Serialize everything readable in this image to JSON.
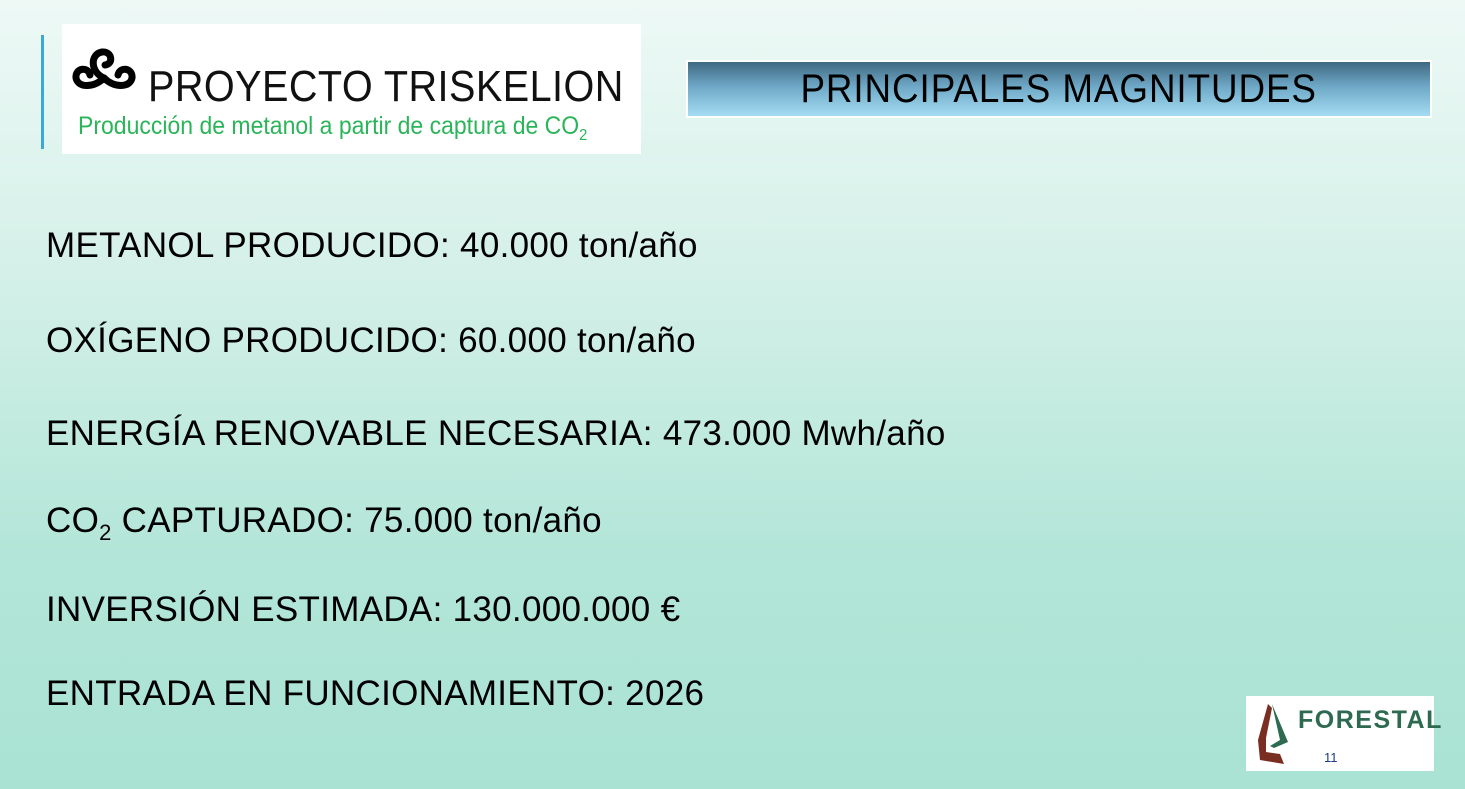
{
  "header": {
    "logo_title": "PROYECTO TRISKELION",
    "logo_subtitle": "Producción de metanol a partir de captura de CO",
    "logo_subtitle_sub": "2",
    "slide_title": "PRINCIPALES MAGNITUDES"
  },
  "items": [
    {
      "text": "METANOL PRODUCIDO: 40.000 ton/año"
    },
    {
      "text": "OXÍGENO PRODUCIDO: 60.000 ton/año"
    },
    {
      "text": "ENERGÍA RENOVABLE NECESARIA: 473.000 Mwh/año"
    },
    {
      "pre": "CO",
      "sub": "2",
      "text": " CAPTURADO: 75.000 ton/año"
    },
    {
      "text": "INVERSIÓN ESTIMADA: 130.000.000 €"
    },
    {
      "text": "ENTRADA EN FUNCIONAMIENTO: 2026"
    }
  ],
  "footer": {
    "logo_text": "FORESTAL",
    "page_number": "11"
  },
  "colors": {
    "accent_line": "#3aa9d6",
    "subtitle_green": "#2bb55a",
    "forestal_green": "#2d6a4f",
    "forestal_brown": "#7a2e22"
  }
}
